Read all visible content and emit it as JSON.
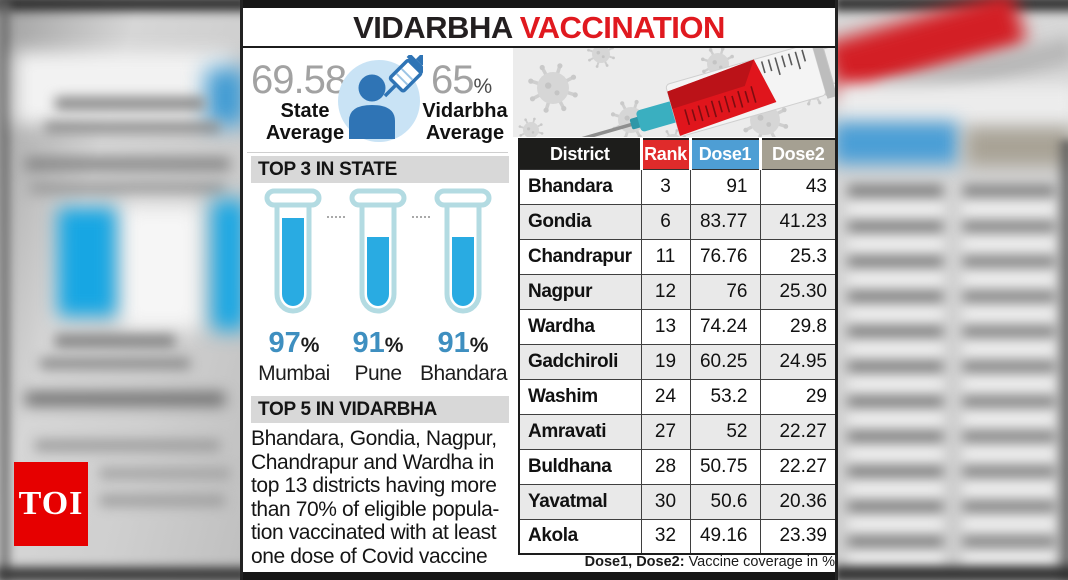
{
  "title": {
    "black": "VIDARBHA",
    "red": "VACCINATION"
  },
  "averages": {
    "state": {
      "value": "69.58",
      "unit": "%",
      "label": [
        "State",
        "Average"
      ]
    },
    "vidarbha": {
      "value": "65",
      "unit": "%",
      "label": [
        "Vidarbha",
        "Average"
      ]
    }
  },
  "top3": {
    "heading": "TOP 3 IN STATE",
    "items": [
      {
        "city": "Mumbai",
        "percent": "97"
      },
      {
        "city": "Pune",
        "percent": "91"
      },
      {
        "city": "Bhandara",
        "percent": "91"
      }
    ]
  },
  "top5": {
    "heading": "TOP 5 IN VIDARBHA",
    "lines": [
      "Bhandara, Gondia, Nagpur,",
      "Chandrapur and Wardha in",
      "top 13 districts having more",
      "than 70% of eligible popula-",
      "tion vaccinated with at least",
      "one dose of Covid vaccine"
    ]
  },
  "table": {
    "columns": [
      "District",
      "Rank",
      "Dose1",
      "Dose2"
    ],
    "rows": [
      {
        "district": "Bhandara",
        "rank": "3",
        "dose1": "91",
        "dose2": "43"
      },
      {
        "district": "Gondia",
        "rank": "6",
        "dose1": "83.77",
        "dose2": "41.23"
      },
      {
        "district": "Chandrapur",
        "rank": "11",
        "dose1": "76.76",
        "dose2": "25.3"
      },
      {
        "district": "Nagpur",
        "rank": "12",
        "dose1": "76",
        "dose2": "25.30"
      },
      {
        "district": "Wardha",
        "rank": "13",
        "dose1": "74.24",
        "dose2": "29.8"
      },
      {
        "district": "Gadchiroli",
        "rank": "19",
        "dose1": "60.25",
        "dose2": "24.95"
      },
      {
        "district": "Washim",
        "rank": "24",
        "dose1": "53.2",
        "dose2": "29"
      },
      {
        "district": "Amravati",
        "rank": "27",
        "dose1": "52",
        "dose2": "22.27"
      },
      {
        "district": "Buldhana",
        "rank": "28",
        "dose1": "50.75",
        "dose2": "22.27"
      },
      {
        "district": "Yavatmal",
        "rank": "30",
        "dose1": "50.6",
        "dose2": "20.36"
      },
      {
        "district": "Akola",
        "rank": "32",
        "dose1": "49.16",
        "dose2": "23.39"
      }
    ],
    "footnote_bold": "Dose1, Dose2:",
    "footnote_rest": " Vaccine coverage in %"
  },
  "logo": {
    "text": "TOI"
  },
  "colors": {
    "title_red": "#e0191f",
    "rank_red": "#e02b2b",
    "dose1_blue": "#4e9ed4",
    "dose2_taupe": "#a5a092",
    "tube_fill": "#29abe2",
    "percent_blue": "#3e8fc0",
    "avg_gray": "#a2a2a2",
    "logo_red": "#e60000",
    "section_bar_gray": "#d8d8d8"
  },
  "chart_data": [
    {
      "type": "bar",
      "title": "TOP 3 IN STATE",
      "categories": [
        "Mumbai",
        "Pune",
        "Bhandara"
      ],
      "values": [
        97,
        91,
        91
      ],
      "xlabel": "",
      "ylabel": "Vaccine coverage in %",
      "ylim": [
        0,
        100
      ],
      "style": "pictorial test tubes filled with liquid"
    },
    {
      "type": "bar",
      "title": "Vaccination averages",
      "categories": [
        "State Average",
        "Vidarbha Average"
      ],
      "values": [
        69.58,
        65
      ],
      "ylabel": "Vaccine coverage in %"
    },
    {
      "type": "table",
      "title": "Vidarbha district vaccination coverage",
      "columns": [
        "District",
        "Rank",
        "Dose1",
        "Dose2"
      ],
      "rows": [
        [
          "Bhandara",
          3,
          91,
          43
        ],
        [
          "Gondia",
          6,
          83.77,
          41.23
        ],
        [
          "Chandrapur",
          11,
          76.76,
          25.3
        ],
        [
          "Nagpur",
          12,
          76,
          25.3
        ],
        [
          "Wardha",
          13,
          74.24,
          29.8
        ],
        [
          "Gadchiroli",
          19,
          60.25,
          24.95
        ],
        [
          "Washim",
          24,
          53.2,
          29
        ],
        [
          "Amravati",
          27,
          52,
          22.27
        ],
        [
          "Buldhana",
          28,
          50.75,
          22.27
        ],
        [
          "Yavatmal",
          30,
          50.6,
          20.36
        ],
        [
          "Akola",
          32,
          49.16,
          23.39
        ]
      ],
      "note": "Dose1, Dose2: Vaccine coverage in %"
    }
  ]
}
